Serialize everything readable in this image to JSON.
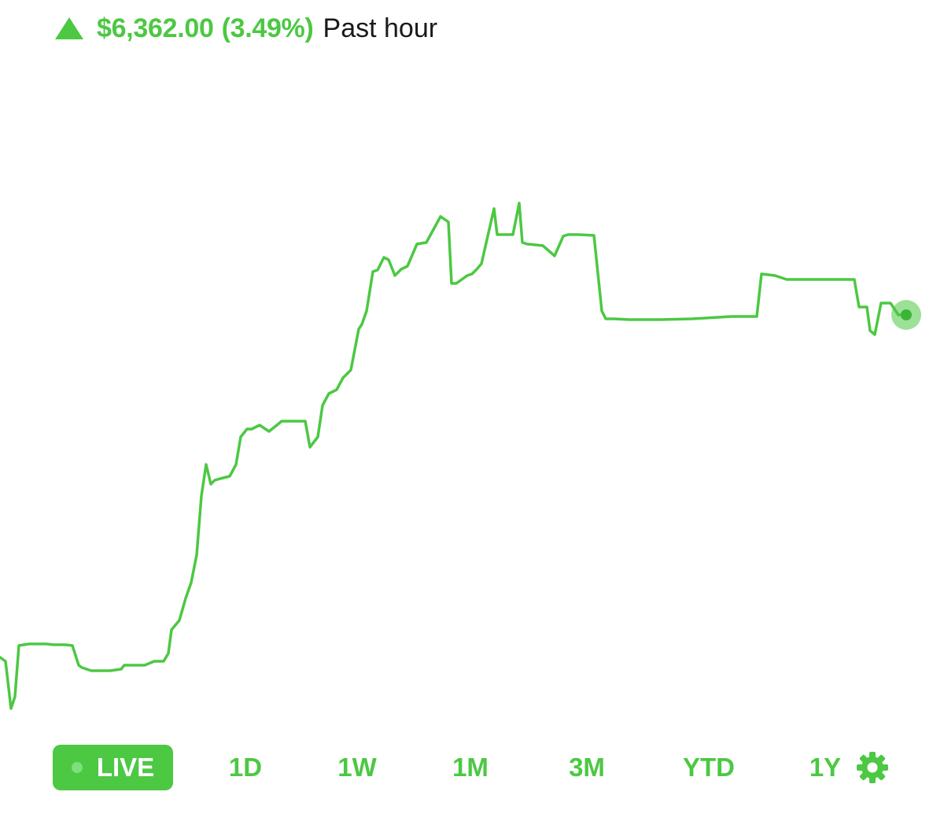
{
  "header": {
    "change_amount": "$6,362.00",
    "change_percent": "(3.49%)",
    "period": "Past hour",
    "direction_icon": "triangle-up-icon"
  },
  "colors": {
    "accent": "#4cc843",
    "text": "#1a1a1a",
    "background": "#ffffff"
  },
  "range_selector": {
    "items": [
      {
        "label": "LIVE",
        "active": true
      },
      {
        "label": "1D",
        "active": false
      },
      {
        "label": "1W",
        "active": false
      },
      {
        "label": "1M",
        "active": false
      },
      {
        "label": "3M",
        "active": false
      },
      {
        "label": "YTD",
        "active": false
      },
      {
        "label": "1Y",
        "active": false
      }
    ],
    "settings_icon": "gear-icon"
  },
  "chart_data": {
    "type": "line",
    "title": "",
    "xlabel": "",
    "ylabel": "",
    "grid": false,
    "axes_visible": false,
    "x": [
      0,
      7,
      14,
      19,
      24,
      37,
      48,
      59,
      68,
      82,
      92,
      100,
      104,
      110,
      116,
      128,
      140,
      154,
      158,
      170,
      184,
      196,
      208,
      214,
      218,
      228,
      236,
      243,
      250,
      256,
      262,
      268,
      273,
      280,
      292,
      300,
      306,
      314,
      320,
      330,
      342,
      352,
      358,
      366,
      376,
      388,
      394,
      404,
      410,
      418,
      428,
      436,
      446,
      456,
      460,
      466,
      474,
      480,
      488,
      494,
      502,
      510,
      518,
      530,
      542,
      560,
      570,
      574,
      580,
      594,
      600,
      606,
      612,
      620,
      628,
      632,
      640,
      652,
      660,
      664,
      670,
      690,
      705,
      716,
      722,
      735,
      755,
      765,
      770,
      780,
      800,
      840,
      880,
      930,
      962,
      968,
      985,
      1000,
      1030,
      1086,
      1092,
      1102,
      1106,
      1112,
      1120,
      1132,
      1142,
      1152
    ],
    "y": [
      835,
      840,
      900,
      885,
      820,
      818,
      818,
      818,
      819,
      819,
      820,
      845,
      848,
      850,
      852,
      852,
      852,
      850,
      845,
      845,
      845,
      840,
      840,
      830,
      800,
      788,
      760,
      740,
      705,
      630,
      590,
      615,
      610,
      608,
      605,
      590,
      555,
      545,
      545,
      540,
      548,
      540,
      535,
      535,
      535,
      535,
      568,
      555,
      515,
      500,
      495,
      480,
      470,
      418,
      412,
      395,
      345,
      343,
      327,
      330,
      350,
      342,
      338,
      310,
      308,
      275,
      282,
      360,
      360,
      350,
      348,
      342,
      335,
      300,
      265,
      298,
      298,
      298,
      258,
      308,
      310,
      312,
      325,
      300,
      298,
      298,
      299,
      395,
      405,
      405,
      406,
      406,
      405,
      402,
      402,
      348,
      350,
      355,
      355,
      355,
      390,
      390,
      420,
      425,
      385,
      385,
      400,
      400
    ],
    "ylim": [
      250,
      920
    ],
    "xlim": [
      0,
      1200
    ],
    "series": [
      {
        "values_ref": "y"
      }
    ],
    "current_marker": true
  }
}
